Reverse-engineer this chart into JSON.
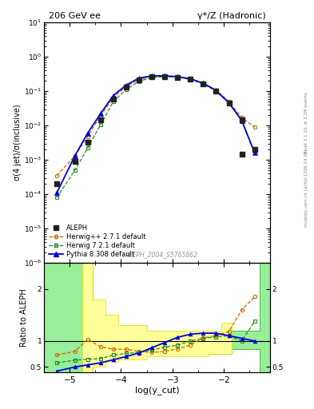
{
  "title_left": "206 GeV ee",
  "title_right": "γ*/Z (Hadronic)",
  "ylabel_main": "σ(4 jet)/σ(inclusive)",
  "ylabel_ratio": "Ratio to ALEPH",
  "xlabel": "log(y_cut)",
  "watermark": "ALEPH_2004_S5765862",
  "right_label_top": "Rivet 3.1.10, ≥ 3.2M events",
  "right_label_bot": "mcplots.cern.ch [arXiv:1306.34.36]",
  "log_ycut": [
    -5.25,
    -4.9,
    -4.65,
    -4.4,
    -4.15,
    -3.9,
    -3.65,
    -3.4,
    -3.15,
    -2.9,
    -2.65,
    -2.4,
    -2.15,
    -1.9,
    -1.65,
    -1.4
  ],
  "aleph_y": [
    0.0002,
    0.0009,
    0.0032,
    0.015,
    0.058,
    0.13,
    0.21,
    0.26,
    0.27,
    0.255,
    0.22,
    0.162,
    0.1,
    0.045,
    0.015,
    0.002
  ],
  "aleph_isolated_x": [
    -1.65
  ],
  "aleph_isolated_y": [
    0.0015
  ],
  "herwig_pp_y": [
    0.00035,
    0.0013,
    0.0048,
    0.019,
    0.065,
    0.138,
    0.22,
    0.265,
    0.272,
    0.26,
    0.23,
    0.172,
    0.105,
    0.05,
    0.017,
    0.009
  ],
  "herwig7_y": [
    8e-05,
    0.0005,
    0.0022,
    0.0105,
    0.05,
    0.112,
    0.195,
    0.25,
    0.265,
    0.255,
    0.22,
    0.162,
    0.1,
    0.045,
    0.0135,
    0.0016
  ],
  "pythia_y": [
    0.00011,
    0.0013,
    0.006,
    0.022,
    0.075,
    0.15,
    0.24,
    0.28,
    0.28,
    0.265,
    0.23,
    0.17,
    0.105,
    0.046,
    0.014,
    0.0016
  ],
  "ratio_xvals": [
    -5.25,
    -4.9,
    -4.65,
    -4.4,
    -4.15,
    -3.9,
    -3.65,
    -3.4,
    -3.15,
    -2.9,
    -2.65,
    -2.4,
    -2.15,
    -1.9,
    -1.65,
    -1.4
  ],
  "ratio_herwig_pp": [
    0.73,
    0.8,
    1.03,
    0.89,
    0.84,
    0.84,
    0.8,
    0.78,
    0.8,
    0.85,
    0.92,
    1.06,
    1.1,
    1.18,
    1.6,
    1.85
  ],
  "ratio_herwig7": [
    0.58,
    0.63,
    0.65,
    0.66,
    0.73,
    0.76,
    0.78,
    0.83,
    0.88,
    0.92,
    1.0,
    1.05,
    1.08,
    1.1,
    1.0,
    1.38
  ],
  "ratio_pythia": [
    0.42,
    0.5,
    0.54,
    0.58,
    0.64,
    0.7,
    0.77,
    0.87,
    0.97,
    1.07,
    1.13,
    1.15,
    1.15,
    1.1,
    1.05,
    1.0
  ],
  "green_band_edges": [
    -5.5,
    -4.75,
    -4.55,
    -4.3,
    -2.3,
    -1.85,
    -1.3,
    -1.1
  ],
  "green_band_lo": [
    0.4,
    0.4,
    0.65,
    0.75,
    0.75,
    0.85,
    0.4,
    0.4
  ],
  "green_band_hi": [
    2.5,
    2.5,
    1.5,
    1.15,
    1.15,
    1.2,
    2.5,
    2.5
  ],
  "yellow_band_edges": [
    -4.75,
    -4.55,
    -4.3,
    -4.05,
    -3.5,
    -2.3,
    -2.05,
    -1.85
  ],
  "yellow_band_lo": [
    0.4,
    0.5,
    0.6,
    0.65,
    0.7,
    0.75,
    0.75,
    0.4
  ],
  "yellow_band_hi": [
    2.5,
    1.8,
    1.5,
    1.3,
    1.2,
    1.2,
    1.35,
    2.5
  ],
  "color_aleph": "#222222",
  "color_herwig_pp": "#cc6600",
  "color_herwig7": "#228B22",
  "color_pythia": "#0000dd",
  "color_yellow": "#ffff99",
  "color_green": "#99ee99",
  "color_yellow_edge": "#dddd00",
  "color_green_edge": "#00aa00",
  "xlim": [
    -5.5,
    -1.1
  ],
  "ylim_main_lo": 1e-06,
  "ylim_main_hi": 10,
  "ylim_ratio_lo": 0.4,
  "ylim_ratio_hi": 2.5
}
